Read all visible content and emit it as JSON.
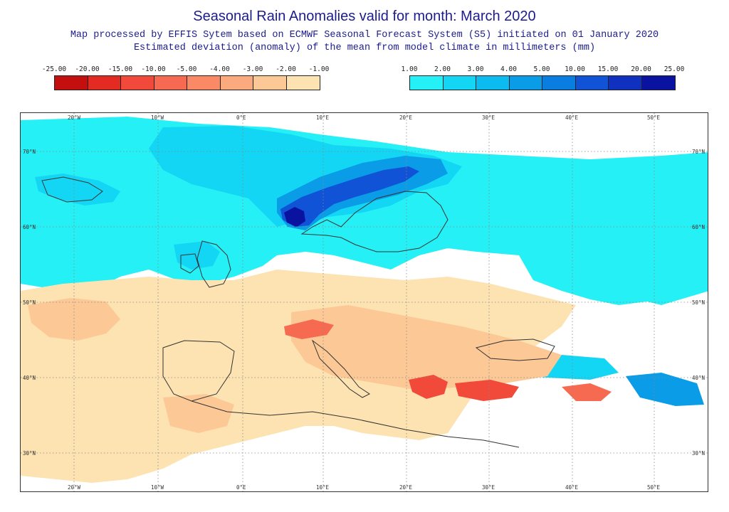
{
  "title": "Seasonal Rain Anomalies valid for month: March 2020",
  "subtitle_line1": "Map processed by EFFIS Sytem based on ECMWF Seasonal Forecast System (S5) initiated on 01 January 2020",
  "subtitle_line2": "Estimated deviation (anomaly) of the mean from model climate in millimeters (mm)",
  "legend_negative": {
    "labels": [
      "-25.00",
      "-20.00",
      "-15.00",
      "-10.00",
      "-5.00",
      "-4.00",
      "-3.00",
      "-2.00",
      "-1.00"
    ],
    "colors": [
      "#c40f0f",
      "#e42b22",
      "#f24a3a",
      "#f76a52",
      "#fa8a66",
      "#fbaa7e",
      "#fcc996",
      "#fde2b2"
    ]
  },
  "legend_positive": {
    "labels": [
      "1.00",
      "2.00",
      "3.00",
      "4.00",
      "5.00",
      "10.00",
      "15.00",
      "20.00",
      "25.00"
    ],
    "colors": [
      "#25f0f5",
      "#13d6f5",
      "#0cbcf0",
      "#0a9ce6",
      "#0a7ee0",
      "#1153d6",
      "#1030c0",
      "#0a12a0"
    ]
  },
  "map": {
    "background": "#ffffff",
    "coastline_color": "#333333",
    "grid_color": "#888888",
    "lon_labels": [
      "20°W",
      "10°W",
      "0°E",
      "10°E",
      "20°E",
      "30°E",
      "40°E",
      "50°E"
    ],
    "lat_labels": [
      "70°N",
      "60°N",
      "50°N",
      "40°N",
      "30°N"
    ]
  }
}
